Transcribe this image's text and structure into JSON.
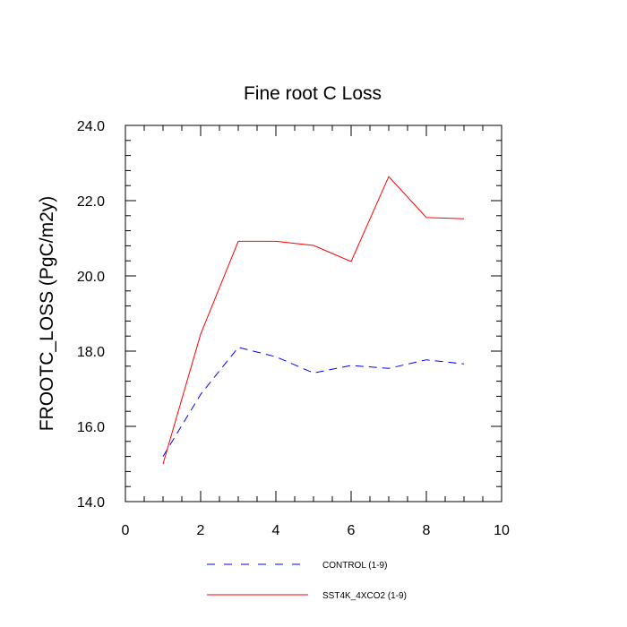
{
  "chart_data": {
    "type": "line",
    "title": "Fine root C Loss",
    "xlabel": "",
    "ylabel": "FROOTC_LOSS  (PgC/m2y)",
    "xlim": [
      0,
      10
    ],
    "ylim": [
      14,
      24
    ],
    "x_ticks": [
      "0",
      "2",
      "4",
      "6",
      "8",
      "10"
    ],
    "y_ticks": [
      "14.0",
      "16.0",
      "18.0",
      "20.0",
      "22.0",
      "24.0"
    ],
    "grid": false,
    "legend_position": "bottom",
    "series": [
      {
        "name": "CONTROL (1-9)",
        "color": "#0000ff",
        "dash": "dashed",
        "x": [
          1,
          2,
          3,
          4,
          5,
          6,
          7,
          8,
          9
        ],
        "y": [
          15.2,
          16.85,
          18.1,
          17.85,
          17.42,
          17.62,
          17.54,
          17.77,
          17.66
        ]
      },
      {
        "name": "SST4K_4XCO2 (1-9)",
        "color": "#ff0000",
        "dash": "solid",
        "x": [
          1,
          2,
          3,
          4,
          5,
          6,
          7,
          8,
          9
        ],
        "y": [
          15.0,
          18.45,
          20.92,
          20.92,
          20.81,
          20.38,
          22.64,
          21.55,
          21.52
        ]
      }
    ]
  }
}
